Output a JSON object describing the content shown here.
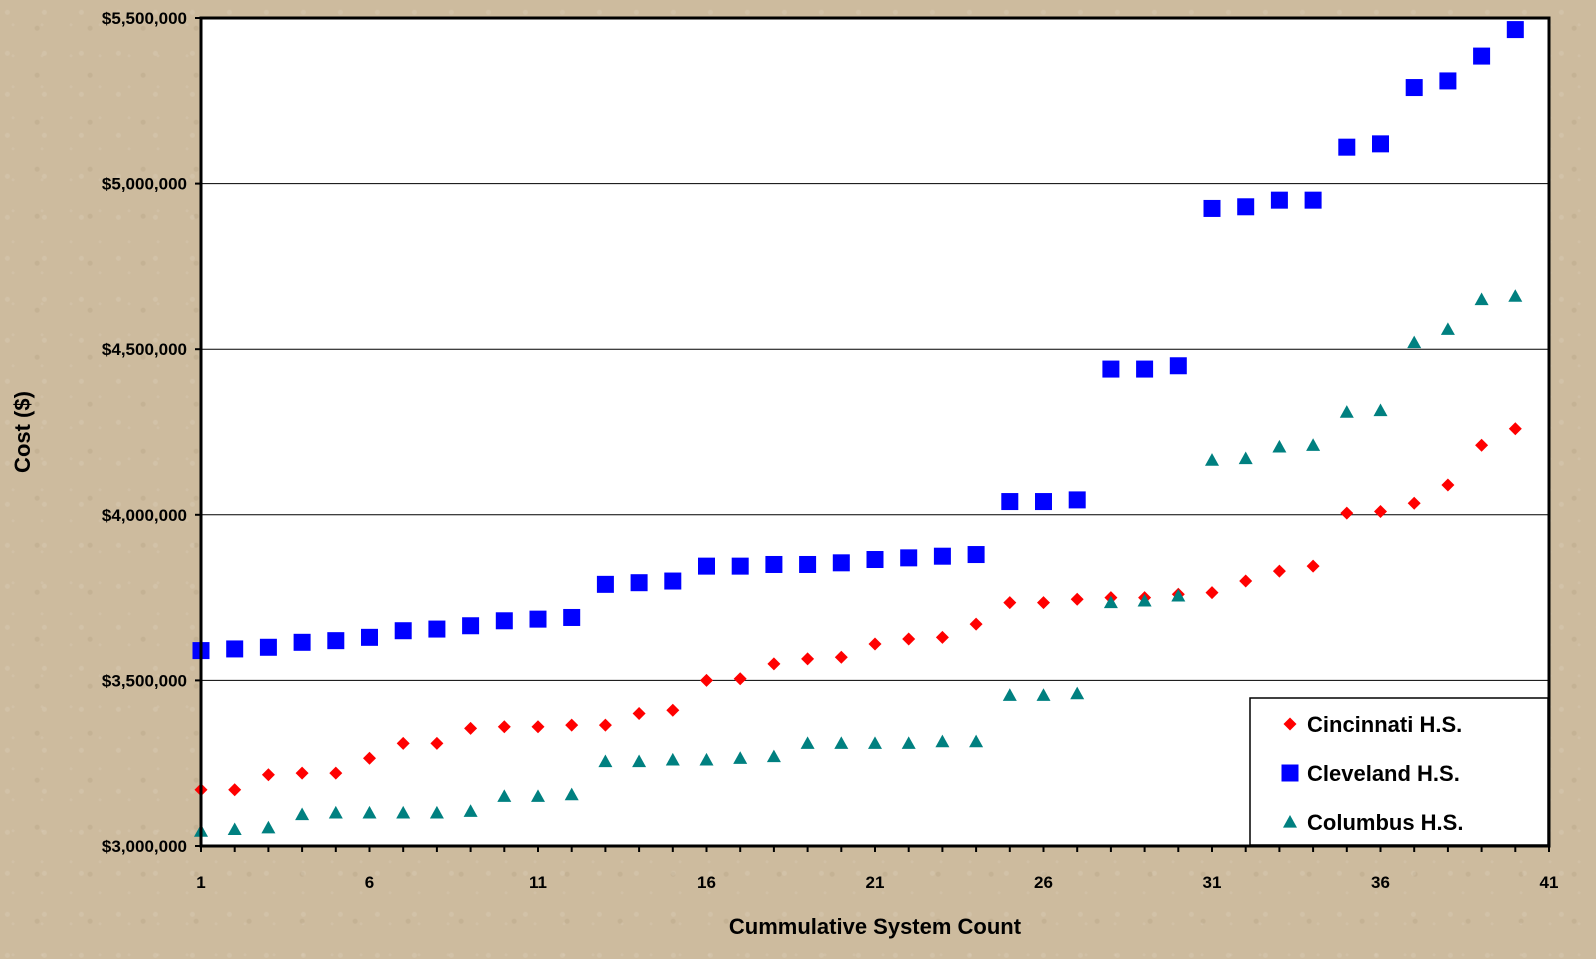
{
  "chart_data": {
    "type": "scatter",
    "xlabel": "Cummulative System Count",
    "ylabel": "Cost ($)",
    "xlim": [
      1,
      41
    ],
    "ylim": [
      3000000,
      5500000
    ],
    "x_ticks": [
      1,
      6,
      11,
      16,
      21,
      26,
      31,
      36,
      41
    ],
    "x_tick_labels": [
      "1",
      "6",
      "11",
      "16",
      "21",
      "26",
      "31",
      "36",
      "41"
    ],
    "y_ticks": [
      3000000,
      3500000,
      4000000,
      4500000,
      5000000,
      5500000
    ],
    "y_tick_labels": [
      "$3,000,000",
      "$3,500,000",
      "$4,000,000",
      "$4,500,000",
      "$5,000,000",
      "$5,500,000"
    ],
    "grid": "horizontal",
    "legend_position": "bottom-right",
    "x": [
      1,
      2,
      3,
      4,
      5,
      6,
      7,
      8,
      9,
      10,
      11,
      12,
      13,
      14,
      15,
      16,
      17,
      18,
      19,
      20,
      21,
      22,
      23,
      24,
      25,
      26,
      27,
      28,
      29,
      30,
      31,
      32,
      33,
      34,
      35,
      36,
      37,
      38,
      39,
      40
    ],
    "series": [
      {
        "name": "Cincinnati H.S.",
        "marker": "diamond",
        "color": "#ff0000",
        "values": [
          3170000,
          3170000,
          3215000,
          3220000,
          3220000,
          3265000,
          3310000,
          3310000,
          3355000,
          3360000,
          3360000,
          3365000,
          3365000,
          3400000,
          3410000,
          3500000,
          3505000,
          3550000,
          3565000,
          3570000,
          3610000,
          3625000,
          3630000,
          3670000,
          3735000,
          3735000,
          3745000,
          3750000,
          3750000,
          3760000,
          3765000,
          3800000,
          3830000,
          3845000,
          4005000,
          4010000,
          4035000,
          4090000,
          4210000,
          4260000
        ]
      },
      {
        "name": "Cleveland H.S.",
        "marker": "square",
        "color": "#0000ff",
        "values": [
          3590000,
          3595000,
          3600000,
          3615000,
          3620000,
          3630000,
          3650000,
          3655000,
          3665000,
          3680000,
          3685000,
          3690000,
          3790000,
          3795000,
          3800000,
          3845000,
          3845000,
          3850000,
          3850000,
          3855000,
          3865000,
          3870000,
          3875000,
          3880000,
          4040000,
          4040000,
          4045000,
          4440000,
          4440000,
          4450000,
          4925000,
          4930000,
          4950000,
          4950000,
          5110000,
          5120000,
          5290000,
          5310000,
          5385000,
          5465000
        ]
      },
      {
        "name": "Columbus H.S.",
        "marker": "triangle",
        "color": "#008080",
        "values": [
          3045000,
          3050000,
          3055000,
          3095000,
          3100000,
          3100000,
          3100000,
          3100000,
          3105000,
          3150000,
          3150000,
          3155000,
          3255000,
          3255000,
          3260000,
          3260000,
          3265000,
          3270000,
          3310000,
          3310000,
          3310000,
          3310000,
          3315000,
          3315000,
          3455000,
          3455000,
          3460000,
          3735000,
          3740000,
          3755000,
          4165000,
          4170000,
          4205000,
          4210000,
          4310000,
          4315000,
          4520000,
          4560000,
          4650000,
          4660000
        ]
      }
    ]
  }
}
